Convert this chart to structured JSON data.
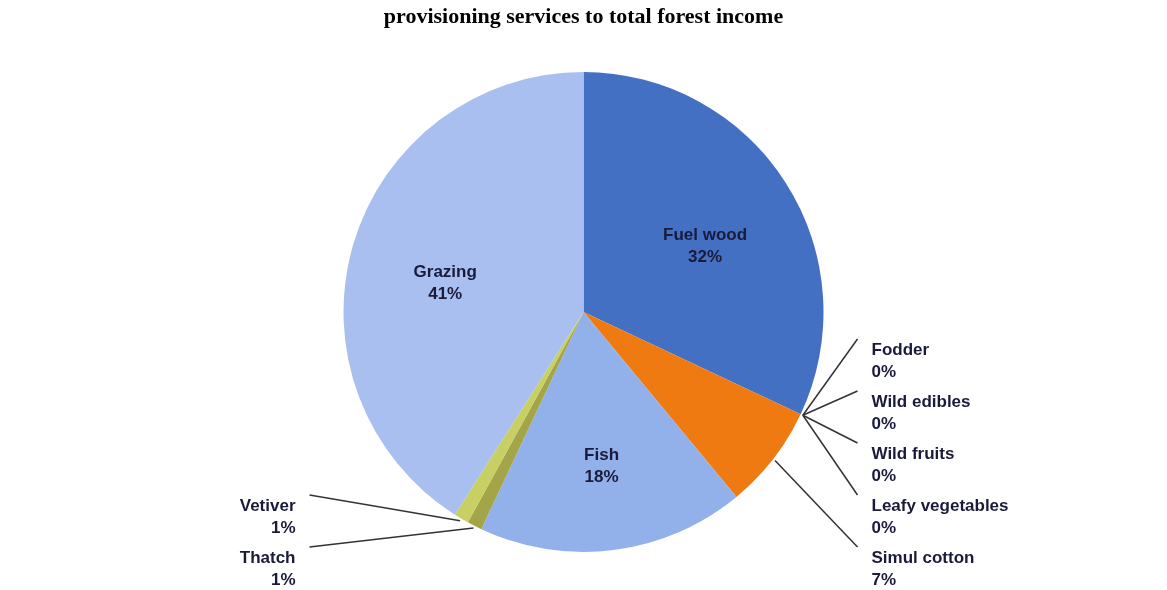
{
  "chart_data": {
    "type": "pie",
    "title": "provisioning services to total forest income",
    "categories": [
      "Fuel wood",
      "Fodder",
      "Wild edibles",
      "Wild fruits",
      "Leafy vegetables",
      "Simul cotton",
      "Fish",
      "Thatch",
      "Vetiver",
      "Grazing"
    ],
    "values": [
      32,
      0,
      0,
      0,
      0,
      7,
      18,
      1,
      1,
      41
    ],
    "value_labels": [
      "32%",
      "0%",
      "0%",
      "0%",
      "0%",
      "7%",
      "18%",
      "1%",
      "1%",
      "41%"
    ],
    "colors": [
      "#4470c4",
      "#7b8fc8",
      "#5a7cc0",
      "#6a86c8",
      "#8a9ed0",
      "#f07a12",
      "#92b0ea",
      "#a4a448",
      "#c8d064",
      "#a9bff0"
    ]
  }
}
